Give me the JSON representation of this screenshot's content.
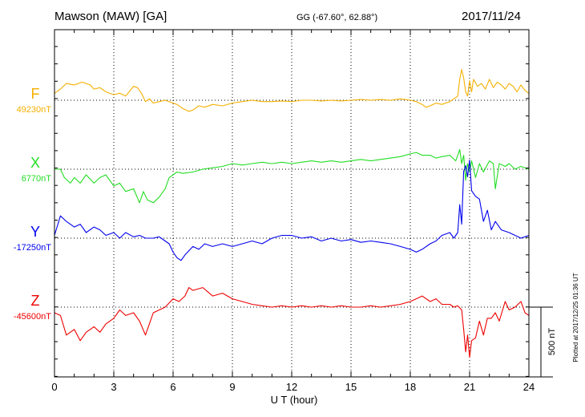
{
  "header": {
    "station": "Mawson (MAW)  [GA]",
    "coords": "GG (-67.60°,  62.88°)",
    "date": "2017/11/24"
  },
  "footer": {
    "plotted": "Plotted at 2017/12/25 01:36 UT"
  },
  "colors": {
    "F": "#f5b000",
    "X": "#22dd22",
    "Y": "#0000ee",
    "Z": "#ee0000"
  },
  "chart_data": {
    "type": "line",
    "xlabel": "U T (hour)",
    "xlim": [
      0,
      24
    ],
    "xticks": [
      "0",
      "3",
      "6",
      "9",
      "12",
      "15",
      "18",
      "21",
      "24"
    ],
    "grid": true,
    "scale_bar": {
      "label": "500 nT",
      "value_nT": 500
    },
    "nT_per_panel_unit": 500,
    "series": [
      {
        "name": "F",
        "baseline_label": "49230nT",
        "baseline_nT": 49230,
        "t": [
          0,
          0.3,
          0.6,
          1.0,
          1.4,
          1.8,
          2.0,
          2.3,
          2.6,
          3.0,
          3.3,
          3.6,
          4.0,
          4.2,
          4.4,
          4.6,
          4.8,
          5.0,
          5.3,
          5.6,
          6.0,
          6.2,
          6.5,
          6.8,
          7.0,
          7.3,
          7.6,
          8.0,
          8.5,
          9.0,
          9.5,
          10.0,
          10.5,
          11.0,
          11.5,
          12.0,
          12.5,
          13.0,
          13.5,
          14.0,
          14.5,
          15.0,
          15.5,
          16.0,
          16.5,
          17.0,
          17.5,
          18.0,
          18.3,
          18.6,
          18.8,
          19.0,
          19.3,
          19.6,
          20.0,
          20.2,
          20.4,
          20.5,
          20.6,
          20.7,
          20.8,
          20.9,
          21.0,
          21.1,
          21.2,
          21.4,
          21.6,
          21.8,
          22.0,
          22.2,
          22.4,
          22.6,
          22.8,
          23.0,
          23.2,
          23.4,
          23.6,
          23.8,
          24.0
        ],
        "dnT": [
          50,
          80,
          120,
          110,
          130,
          110,
          80,
          90,
          60,
          40,
          50,
          30,
          100,
          90,
          50,
          -10,
          10,
          -20,
          -10,
          0,
          -20,
          -30,
          -60,
          -80,
          -70,
          -40,
          -50,
          -30,
          -40,
          -20,
          -10,
          0,
          -10,
          -10,
          -5,
          -10,
          0,
          0,
          -5,
          0,
          -5,
          0,
          5,
          0,
          5,
          0,
          10,
          0,
          -10,
          -30,
          -50,
          -40,
          -20,
          -30,
          -10,
          10,
          30,
          150,
          220,
          160,
          60,
          30,
          140,
          60,
          150,
          100,
          120,
          80,
          150,
          90,
          130,
          110,
          80,
          120,
          100,
          60,
          110,
          70,
          50
        ]
      },
      {
        "name": "X",
        "baseline_label": "6770nT",
        "baseline_nT": 6770,
        "t": [
          0,
          0.3,
          0.5,
          0.8,
          1.0,
          1.3,
          1.6,
          2.0,
          2.3,
          2.6,
          3.0,
          3.3,
          3.6,
          4.0,
          4.3,
          4.5,
          4.7,
          5.0,
          5.3,
          5.6,
          5.8,
          6.0,
          6.2,
          6.5,
          7.0,
          7.5,
          8.0,
          8.5,
          9.0,
          9.5,
          10.0,
          10.5,
          11.0,
          11.5,
          12.0,
          12.5,
          13.0,
          13.5,
          14.0,
          14.5,
          15.0,
          15.5,
          16.0,
          16.5,
          17.0,
          17.5,
          18.0,
          18.3,
          18.6,
          19.0,
          19.3,
          19.6,
          20.0,
          20.3,
          20.5,
          20.6,
          20.7,
          20.8,
          20.9,
          21.0,
          21.1,
          21.3,
          21.5,
          21.7,
          22.0,
          22.2,
          22.3,
          22.5,
          22.8,
          23.0,
          23.3,
          23.6,
          24.0
        ],
        "dnT": [
          0,
          0,
          -60,
          -100,
          -60,
          -100,
          -40,
          -100,
          -60,
          -40,
          -120,
          -100,
          -160,
          -140,
          -240,
          -160,
          -220,
          -240,
          -200,
          -140,
          -60,
          -40,
          -20,
          -30,
          -20,
          0,
          10,
          20,
          40,
          30,
          40,
          50,
          40,
          50,
          40,
          50,
          60,
          50,
          60,
          50,
          60,
          70,
          60,
          70,
          80,
          90,
          110,
          120,
          100,
          100,
          80,
          90,
          100,
          60,
          140,
          40,
          100,
          -80,
          40,
          -20,
          60,
          -60,
          40,
          -20,
          60,
          40,
          -140,
          40,
          20,
          40,
          0,
          20,
          0
        ]
      },
      {
        "name": "Y",
        "baseline_label": "-17250nT",
        "baseline_nT": -17250,
        "t": [
          0,
          0.3,
          0.6,
          1.0,
          1.3,
          1.6,
          2.0,
          2.3,
          2.6,
          3.0,
          3.3,
          3.6,
          4.0,
          4.3,
          4.6,
          5.0,
          5.3,
          5.6,
          5.8,
          6.0,
          6.2,
          6.4,
          6.6,
          7.0,
          7.3,
          7.6,
          8.0,
          8.5,
          9.0,
          9.5,
          10.0,
          10.5,
          11.0,
          11.5,
          12.0,
          12.5,
          13.0,
          13.5,
          14.0,
          14.5,
          15.0,
          15.5,
          16.0,
          16.5,
          17.0,
          17.5,
          18.0,
          18.3,
          18.6,
          19.0,
          19.3,
          19.6,
          20.0,
          20.2,
          20.4,
          20.5,
          20.6,
          20.7,
          20.8,
          20.9,
          21.0,
          21.1,
          21.3,
          21.5,
          21.7,
          21.9,
          22.1,
          22.3,
          22.6,
          23.0,
          23.3,
          23.6,
          24.0
        ],
        "dnT": [
          20,
          160,
          120,
          80,
          100,
          40,
          80,
          60,
          20,
          40,
          0,
          40,
          10,
          20,
          0,
          0,
          10,
          -20,
          -40,
          -100,
          -140,
          -160,
          -120,
          -60,
          -80,
          -40,
          -60,
          -40,
          -60,
          -40,
          -20,
          -40,
          0,
          20,
          20,
          0,
          10,
          -20,
          0,
          -20,
          -10,
          -30,
          -20,
          -30,
          -40,
          -60,
          -80,
          -100,
          -80,
          -40,
          -20,
          20,
          40,
          0,
          40,
          240,
          100,
          480,
          520,
          440,
          560,
          340,
          300,
          280,
          120,
          200,
          60,
          120,
          60,
          40,
          20,
          0,
          20
        ]
      },
      {
        "name": "Z",
        "baseline_label": "-45600nT",
        "baseline_nT": -45600,
        "t": [
          0,
          0.3,
          0.6,
          1.0,
          1.3,
          1.6,
          2.0,
          2.3,
          2.6,
          3.0,
          3.3,
          3.6,
          4.0,
          4.3,
          4.6,
          4.8,
          5.0,
          5.3,
          5.6,
          6.0,
          6.3,
          6.6,
          6.8,
          7.0,
          7.5,
          8.0,
          8.5,
          9.0,
          9.5,
          10.0,
          10.5,
          11.0,
          11.5,
          12.0,
          12.5,
          13.0,
          13.5,
          14.0,
          14.5,
          15.0,
          15.5,
          16.0,
          16.5,
          17.0,
          17.5,
          18.0,
          18.3,
          18.6,
          19.0,
          19.3,
          19.6,
          20.0,
          20.2,
          20.4,
          20.6,
          20.7,
          20.8,
          20.9,
          21.0,
          21.1,
          21.3,
          21.5,
          21.7,
          21.9,
          22.1,
          22.3,
          22.5,
          22.8,
          23.0,
          23.3,
          23.6,
          23.8,
          24.0
        ],
        "dnT": [
          -40,
          -60,
          -200,
          -160,
          -240,
          -180,
          -140,
          -180,
          -120,
          -80,
          -20,
          -60,
          -40,
          -100,
          -200,
          -120,
          -40,
          -20,
          0,
          60,
          40,
          80,
          140,
          120,
          140,
          80,
          100,
          60,
          40,
          20,
          10,
          0,
          10,
          0,
          10,
          0,
          10,
          0,
          10,
          0,
          0,
          10,
          0,
          10,
          20,
          40,
          60,
          80,
          40,
          60,
          20,
          20,
          0,
          10,
          -20,
          -160,
          -320,
          -200,
          -360,
          -240,
          -220,
          -100,
          -200,
          -80,
          -80,
          -40,
          -100,
          40,
          -20,
          0,
          40,
          -40,
          -60
        ]
      }
    ]
  }
}
